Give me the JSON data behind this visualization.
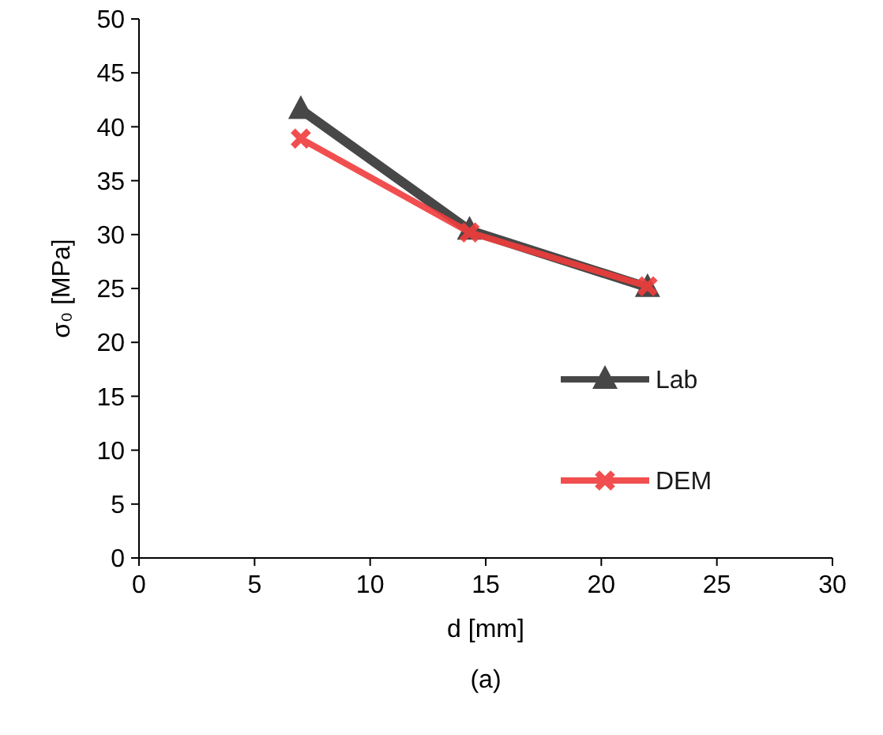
{
  "chart_data": {
    "type": "line",
    "xlabel": "d [mm]",
    "ylabel": "σ₀ [MPa]",
    "annotations": [
      "(a)"
    ],
    "xlim": [
      0,
      30
    ],
    "xticks": [
      0,
      5,
      10,
      15,
      20,
      25,
      30
    ],
    "ylim": [
      0,
      50
    ],
    "yticks": [
      0,
      5,
      10,
      15,
      20,
      25,
      30,
      35,
      40,
      45,
      50
    ],
    "grid": false,
    "legend": "right",
    "line_style": "solid",
    "series": [
      {
        "name": "Lab",
        "color": "#333333",
        "marker": "triangle",
        "x": [
          7,
          14.3,
          22
        ],
        "values": [
          41.6,
          30.4,
          25.1
        ]
      },
      {
        "name": "DEM",
        "color": "#f03c3c",
        "marker": "cross",
        "x": [
          7,
          14.3,
          22
        ],
        "values": [
          38.9,
          30.2,
          25.2
        ]
      }
    ]
  }
}
